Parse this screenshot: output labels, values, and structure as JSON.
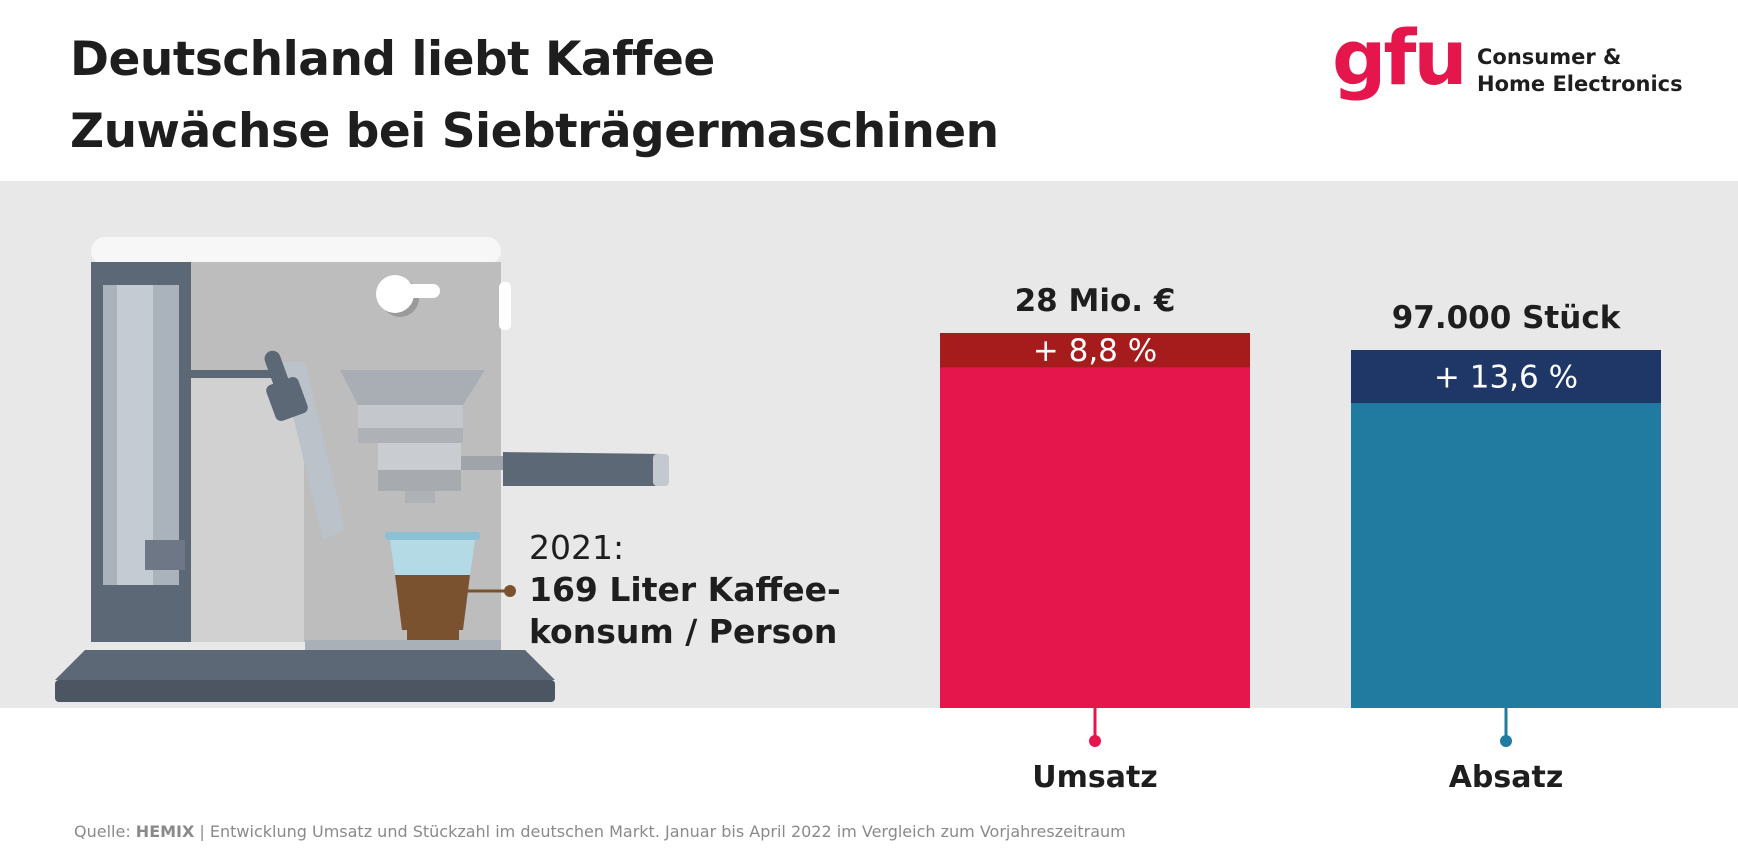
{
  "header": {
    "title_line_1": "Deutschland liebt Kaffee",
    "title_line_2": "Zuwächse bei Siebträgermaschinen"
  },
  "logo": {
    "mark": "gfu",
    "line_1": "Consumer &",
    "line_2": "Home Electronics"
  },
  "illustration": {
    "icon": "espresso-machine-icon",
    "annotation_year": "2021:",
    "annotation_line_1": "169 Liter Kaffee-",
    "annotation_line_2": "konsum / Person"
  },
  "colors": {
    "umsatz_bar": "#e4164b",
    "umsatz_cap": "#a61c1c",
    "absatz_bar": "#217ba1",
    "absatz_cap": "#1e3766",
    "band": "#e8e8e8"
  },
  "chart_data": {
    "type": "bar",
    "categories": [
      "Umsatz",
      "Absatz"
    ],
    "values": [
      28,
      97000
    ],
    "value_labels": [
      "28 Mio. €",
      "97.000 Stück"
    ],
    "growth_labels": [
      "+ 8,8 %",
      "+ 13,6 %"
    ],
    "growth_percent": [
      8.8,
      13.6
    ]
  },
  "footer": {
    "source_prefix": "Quelle:",
    "source_brand": "HEMIX",
    "source_text": "| Entwicklung Umsatz und Stückzahl im deutschen Markt. Januar bis April 2022 im Vergleich zum Vorjahreszeitraum"
  }
}
